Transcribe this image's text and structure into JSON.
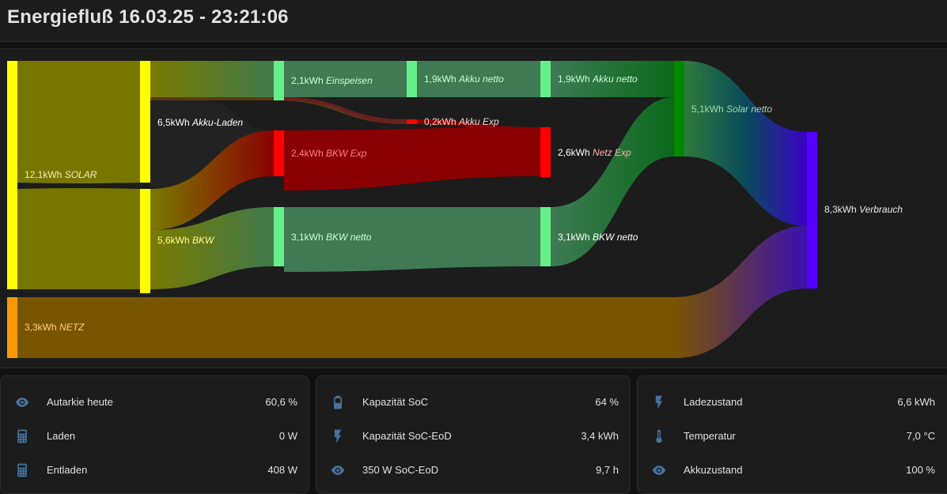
{
  "header": {
    "title": "Energiefluß 16.03.25 - 23:21:06"
  },
  "colors": {
    "solar": "#ffff00",
    "netz": "#ff9900",
    "bkw_exp": "#ff0000",
    "green_node": "#66ee88",
    "solar_netto": "#008800",
    "verbrauch": "#5500ff",
    "icon": "#44739e"
  },
  "flow": {
    "solar": {
      "value": "12,1kWh",
      "name": "SOLAR"
    },
    "netz": {
      "value": "3,3kWh",
      "name": "NETZ"
    },
    "akku_laden": {
      "value": "6,5kWh",
      "name": "Akku-Laden"
    },
    "bkw": {
      "value": "5,6kWh",
      "name": "BKW"
    },
    "einspeisen": {
      "value": "2,1kWh",
      "name": "Einspeisen"
    },
    "bkw_exp": {
      "value": "2,4kWh",
      "name": "BKW Exp"
    },
    "bkw_netto_1": {
      "value": "3,1kWh",
      "name": "BKW netto"
    },
    "akku_netto_1": {
      "value": "1,9kWh",
      "name": "Akku netto"
    },
    "akku_exp": {
      "value": "0,2kWh",
      "name": "Akku Exp"
    },
    "akku_netto_2": {
      "value": "1,9kWh",
      "name": "Akku netto"
    },
    "netz_exp": {
      "value": "2,6kWh",
      "name": "Netz Exp"
    },
    "bkw_netto_2": {
      "value": "3,1kWh",
      "name": "BKW netto"
    },
    "solar_netto": {
      "value": "5,1kWh",
      "name": "Solar netto"
    },
    "verbrauch": {
      "value": "8,3kWh",
      "name": "Verbrauch"
    }
  },
  "cards": [
    {
      "rows": [
        {
          "icon": "eye-icon",
          "name": "Autarkie heute",
          "value": "60,6 %"
        },
        {
          "icon": "calculator-icon",
          "name": "Laden",
          "value": "0 W"
        },
        {
          "icon": "calculator-icon",
          "name": "Entladen",
          "value": "408 W"
        }
      ]
    },
    {
      "rows": [
        {
          "icon": "battery-icon",
          "name": "Kapazität SoC",
          "value": "64 %"
        },
        {
          "icon": "flash-icon",
          "name": "Kapazität SoC-EoD",
          "value": "3,4 kWh"
        },
        {
          "icon": "eye-icon",
          "name": "350 W SoC-EoD",
          "value": "9,7 h"
        }
      ]
    },
    {
      "rows": [
        {
          "icon": "flash-icon",
          "name": "Ladezustand",
          "value": "6,6 kWh"
        },
        {
          "icon": "thermometer-icon",
          "name": "Temperatur",
          "value": "7,0 °C"
        },
        {
          "icon": "eye-icon",
          "name": "Akkuzustand",
          "value": "100 %"
        }
      ]
    }
  ]
}
